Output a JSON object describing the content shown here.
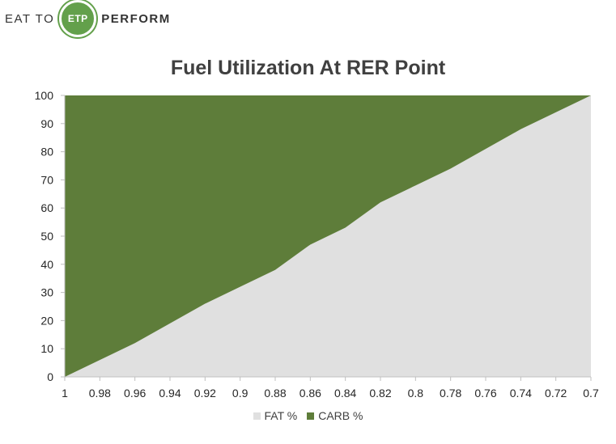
{
  "logo": {
    "left_text": "EAT TO",
    "badge_text": "ETP",
    "right_text": "PERFORM"
  },
  "colors": {
    "fat": "#e0e0e0",
    "carb": "#5e7d3a",
    "brand": "#63a04b",
    "axis": "#bfbfbf",
    "text": "#262626"
  },
  "chart_data": {
    "type": "area",
    "stacked": true,
    "title": "Fuel Utilization At RER Point",
    "xlabel": "",
    "ylabel": "",
    "categories": [
      "1",
      "0.98",
      "0.96",
      "0.94",
      "0.92",
      "0.9",
      "0.88",
      "0.86",
      "0.84",
      "0.82",
      "0.8",
      "0.78",
      "0.76",
      "0.74",
      "0.72",
      "0.7"
    ],
    "y_ticks": [
      "0",
      "10",
      "20",
      "30",
      "40",
      "50",
      "60",
      "70",
      "80",
      "90",
      "100"
    ],
    "ylim": [
      0,
      100
    ],
    "grid": false,
    "legend_position": "bottom",
    "series": [
      {
        "name": "FAT %",
        "color": "#e0e0e0",
        "values": [
          0,
          6,
          12,
          19,
          26,
          32,
          38,
          47,
          53,
          62,
          68,
          74,
          81,
          88,
          94,
          100
        ]
      },
      {
        "name": "CARB %",
        "color": "#5e7d3a",
        "values": [
          100,
          94,
          88,
          81,
          74,
          68,
          62,
          53,
          47,
          38,
          32,
          26,
          19,
          12,
          6,
          0
        ]
      }
    ]
  }
}
